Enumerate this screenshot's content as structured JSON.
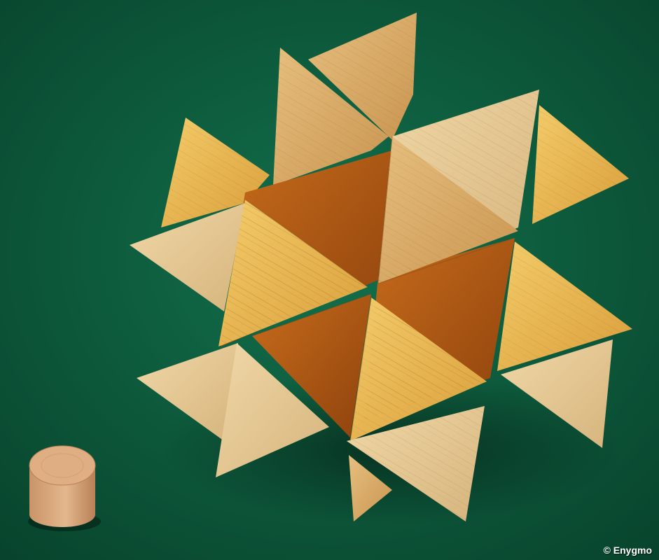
{
  "photo": {
    "subject": "wooden-star-burr-puzzle",
    "colors": {
      "felt": "#0e5a3e",
      "felt_dark": "#093f2b",
      "wood_light": "#e9c98f",
      "wood_yellow": "#e8b548",
      "wood_mid": "#d8a65c",
      "wood_dark": "#b25a12",
      "peg": "#d9a878"
    }
  },
  "copyright": "© Enygmo"
}
